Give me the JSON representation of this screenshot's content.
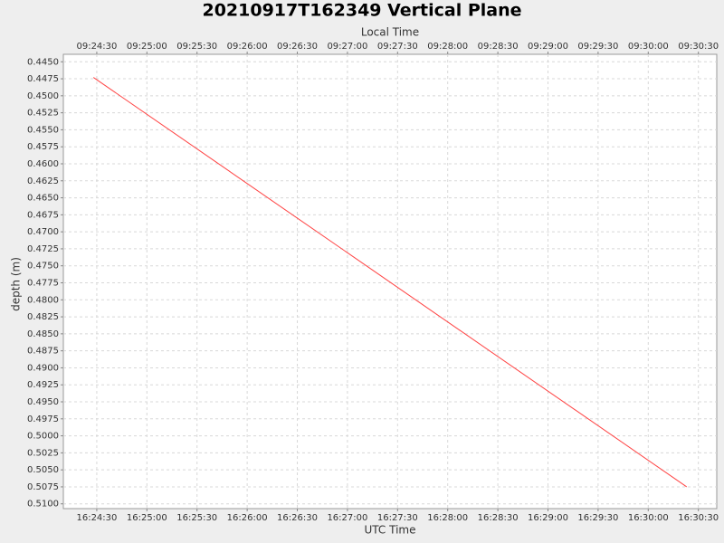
{
  "chart_data": {
    "type": "line",
    "title": "20210917T162349 Vertical Plane",
    "x_label": "UTC Time",
    "x2_label": "Local Time",
    "y_label": "depth (m)",
    "x": [
      "16:24:28",
      "16:30:23"
    ],
    "series": [
      {
        "color": "#ff4444",
        "values": [
          0.4473,
          0.5075
        ]
      }
    ],
    "xlim": [
      "16:24:10",
      "16:30:41"
    ],
    "xticks": [
      "16:24:30",
      "16:25:00",
      "16:25:30",
      "16:26:00",
      "16:26:30",
      "16:27:00",
      "16:27:30",
      "16:28:00",
      "16:28:30",
      "16:29:00",
      "16:29:30",
      "16:30:00",
      "16:30:30"
    ],
    "x2ticks": [
      {
        "value": "16:24:30",
        "label": "09:24:30"
      },
      {
        "value": "16:25:00",
        "label": "09:25:00"
      },
      {
        "value": "16:25:30",
        "label": "09:25:30"
      },
      {
        "value": "16:26:00",
        "label": "09:26:00"
      },
      {
        "value": "16:26:30",
        "label": "09:26:30"
      },
      {
        "value": "16:27:00",
        "label": "09:27:00"
      },
      {
        "value": "16:27:30",
        "label": "09:27:30"
      },
      {
        "value": "16:28:00",
        "label": "09:28:00"
      },
      {
        "value": "16:28:30",
        "label": "09:28:30"
      },
      {
        "value": "16:29:00",
        "label": "09:29:00"
      },
      {
        "value": "16:29:30",
        "label": "09:29:30"
      },
      {
        "value": "16:30:00",
        "label": "09:30:00"
      },
      {
        "value": "16:30:30",
        "label": "09:30:30"
      }
    ],
    "ylim": [
      0.4439,
      0.5107
    ],
    "y_inverted": true,
    "yticks": [
      {
        "value": 0.445,
        "label": "0.4450"
      },
      0.4475,
      {
        "value": 0.45,
        "label": "0.4500"
      },
      0.4525,
      {
        "value": 0.455,
        "label": "0.4550"
      },
      0.4575,
      {
        "value": 0.46,
        "label": "0.4600"
      },
      0.4625,
      {
        "value": 0.465,
        "label": "0.4650"
      },
      0.4675,
      {
        "value": 0.47,
        "label": "0.4700"
      },
      0.4725,
      {
        "value": 0.475,
        "label": "0.4750"
      },
      0.4775,
      {
        "value": 0.48,
        "label": "0.4800"
      },
      0.4825,
      {
        "value": 0.485,
        "label": "0.4850"
      },
      0.4875,
      {
        "value": 0.49,
        "label": "0.4900"
      },
      0.4925,
      {
        "value": 0.495,
        "label": "0.4950"
      },
      0.4975,
      {
        "value": 0.5,
        "label": "0.5000"
      },
      0.5025,
      {
        "value": 0.505,
        "label": "0.5050"
      },
      0.5075,
      {
        "value": 0.51,
        "label": "0.5100"
      }
    ],
    "grid": true
  }
}
